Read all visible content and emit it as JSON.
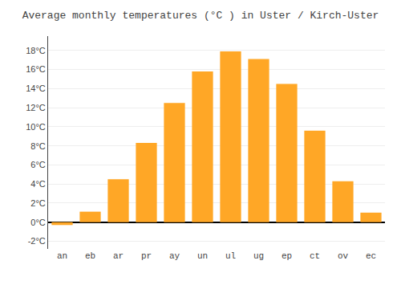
{
  "chart_data": {
    "type": "bar",
    "title": "Average monthly temperatures (°C ) in Uster / Kirch-Uster",
    "categories": [
      "an",
      "eb",
      "ar",
      "pr",
      "ay",
      "un",
      "ul",
      "ug",
      "ep",
      "ct",
      "ov",
      "ec"
    ],
    "values": [
      -0.3,
      1.1,
      4.5,
      8.3,
      12.5,
      15.8,
      17.9,
      17.1,
      14.5,
      9.6,
      4.3,
      1.0
    ],
    "color": "#FFA726",
    "ylim": [
      -2.8,
      19.5
    ],
    "yticks": [
      {
        "value": -2,
        "label": "-2°C"
      },
      {
        "value": 0,
        "label": "0°C"
      },
      {
        "value": 2,
        "label": "2°C"
      },
      {
        "value": 4,
        "label": "4°C"
      },
      {
        "value": 6,
        "label": "6°C"
      },
      {
        "value": 8,
        "label": "8°C"
      },
      {
        "value": 10,
        "label": "10°C"
      },
      {
        "value": 12,
        "label": "12°C"
      },
      {
        "value": 14,
        "label": "14°C"
      },
      {
        "value": 16,
        "label": "16°C"
      },
      {
        "value": 18,
        "label": "18°C"
      }
    ],
    "grid": true
  }
}
